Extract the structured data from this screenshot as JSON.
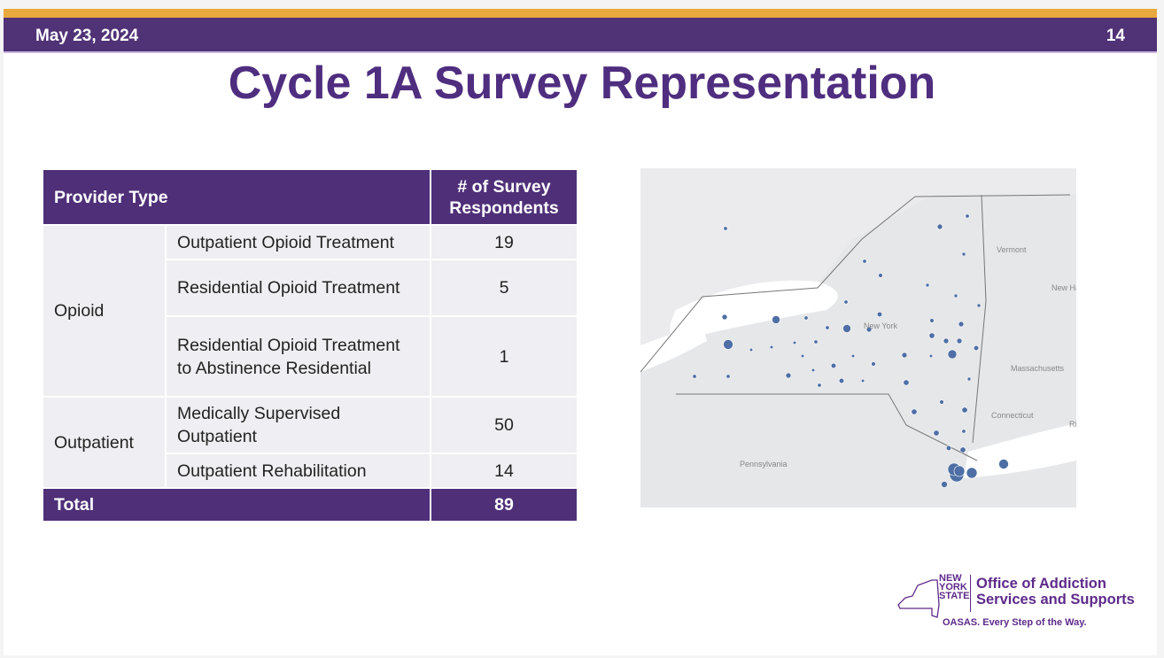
{
  "header": {
    "date": "May 23, 2024",
    "page_number": "14"
  },
  "title": "Cycle 1A Survey Representation",
  "table": {
    "headers": [
      "Provider Type",
      "# of Survey Respondents"
    ],
    "groups": [
      {
        "label": "Opioid",
        "rows": [
          {
            "type": "Outpatient Opioid Treatment",
            "count": "19"
          },
          {
            "type": "Residential Opioid Treatment",
            "count": "5"
          },
          {
            "type": "Residential Opioid Treatment to Abstinence Residential",
            "count": "1"
          }
        ]
      },
      {
        "label": "Outpatient",
        "rows": [
          {
            "type": "Medically Supervised Outpatient",
            "count": "50"
          },
          {
            "type": "Outpatient Rehabilitation",
            "count": "14"
          }
        ]
      }
    ],
    "total": {
      "label": "Total",
      "count": "89"
    }
  },
  "map": {
    "labels": [
      "Vermont",
      "New York",
      "Massachusetts",
      "Connecticut",
      "Pennsylvania",
      "New Hamps",
      "Ri"
    ],
    "dot_color": "#4e6fa5"
  },
  "logo": {
    "state": "NEW YORK STATE",
    "org_line1": "Office of Addiction",
    "org_line2": "Services and Supports",
    "tagline": "OASAS. Every Step of the Way."
  }
}
